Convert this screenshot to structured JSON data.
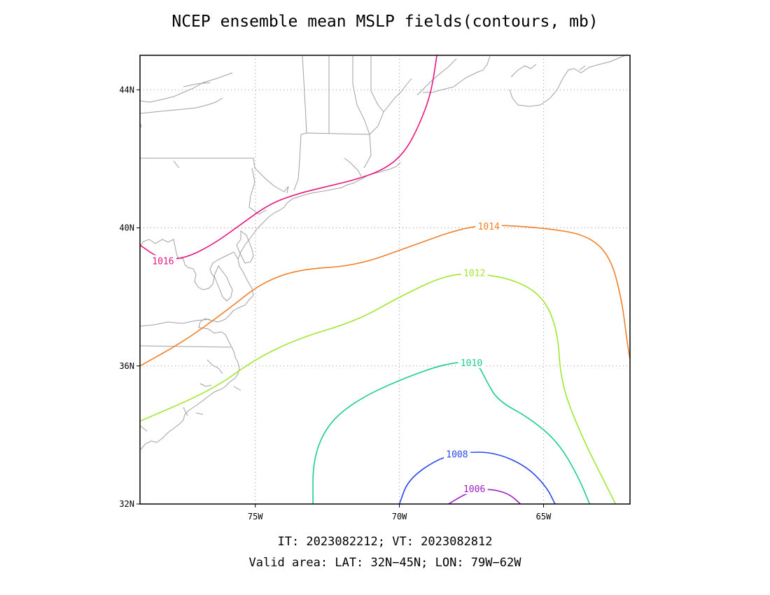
{
  "title": "NCEP ensemble mean MSLP fields(contours, mb)",
  "footer": {
    "line1": "IT: 2023082212; VT: 2023082812",
    "line2": "Valid area: LAT: 32N−45N; LON: 79W−62W"
  },
  "axes": {
    "lat_range": [
      32,
      45
    ],
    "lon_range": [
      -79,
      -62
    ],
    "lat_ticks": [
      {
        "value": 32,
        "label": "32N"
      },
      {
        "value": 36,
        "label": "36N"
      },
      {
        "value": 40,
        "label": "40N"
      },
      {
        "value": 44,
        "label": "44N"
      }
    ],
    "lon_ticks": [
      {
        "value": -75,
        "label": "75W"
      },
      {
        "value": -70,
        "label": "70W"
      },
      {
        "value": -65,
        "label": "65W"
      }
    ],
    "grid": "dotted"
  },
  "contours": [
    {
      "value": 1016,
      "label": "1016",
      "color": "#e8157f",
      "points": [
        [
          -79.0,
          39.5
        ],
        [
          -78.3,
          39.1
        ],
        [
          -77.5,
          39.1
        ],
        [
          -76.5,
          39.5
        ],
        [
          -75.5,
          40.1
        ],
        [
          -74.5,
          40.7
        ],
        [
          -73.5,
          41.0
        ],
        [
          -72.5,
          41.2
        ],
        [
          -71.5,
          41.4
        ],
        [
          -70.5,
          41.7
        ],
        [
          -69.8,
          42.2
        ],
        [
          -69.3,
          43.0
        ],
        [
          -68.9,
          43.9
        ],
        [
          -68.7,
          45.0
        ]
      ],
      "label_at": [
        -78.2,
        39.05
      ]
    },
    {
      "value": 1014,
      "label": "1014",
      "color": "#f08029",
      "points": [
        [
          -79.0,
          36.0
        ],
        [
          -77.5,
          36.7
        ],
        [
          -76.0,
          37.6
        ],
        [
          -74.8,
          38.4
        ],
        [
          -73.5,
          38.8
        ],
        [
          -71.5,
          38.9
        ],
        [
          -69.5,
          39.5
        ],
        [
          -68.0,
          39.95
        ],
        [
          -66.9,
          40.1
        ],
        [
          -65.0,
          40.0
        ],
        [
          -63.5,
          39.8
        ],
        [
          -62.7,
          39.2
        ],
        [
          -62.3,
          38.0
        ],
        [
          -62.1,
          36.7
        ],
        [
          -62.0,
          36.2
        ]
      ],
      "label_at": [
        -66.9,
        40.05
      ]
    },
    {
      "value": 1012,
      "label": "1012",
      "color": "#a0e632",
      "points": [
        [
          -79.0,
          34.4
        ],
        [
          -76.5,
          35.3
        ],
        [
          -75.0,
          36.2
        ],
        [
          -73.5,
          36.8
        ],
        [
          -71.5,
          37.3
        ],
        [
          -70.0,
          38.0
        ],
        [
          -68.5,
          38.6
        ],
        [
          -67.4,
          38.7
        ],
        [
          -66.0,
          38.5
        ],
        [
          -65.0,
          38.0
        ],
        [
          -64.5,
          37.0
        ],
        [
          -64.4,
          35.5
        ],
        [
          -63.7,
          34.0
        ],
        [
          -62.8,
          32.5
        ],
        [
          -62.5,
          32.0
        ]
      ],
      "label_at": [
        -67.4,
        38.7
      ]
    },
    {
      "value": 1010,
      "label": "1010",
      "color": "#1ecc91",
      "points": [
        [
          -73.0,
          32.0
        ],
        [
          -73.0,
          33.3
        ],
        [
          -72.5,
          34.3
        ],
        [
          -71.5,
          35.0
        ],
        [
          -70.0,
          35.6
        ],
        [
          -68.3,
          36.1
        ],
        [
          -67.3,
          36.1
        ],
        [
          -67.0,
          35.6
        ],
        [
          -66.6,
          35.0
        ],
        [
          -65.5,
          34.5
        ],
        [
          -64.5,
          33.8
        ],
        [
          -63.8,
          32.8
        ],
        [
          -63.4,
          32.0
        ]
      ],
      "label_at": [
        -67.5,
        36.1
      ]
    },
    {
      "value": 1008,
      "label": "1008",
      "color": "#2846f0",
      "points": [
        [
          -70.0,
          32.0
        ],
        [
          -69.7,
          32.7
        ],
        [
          -68.7,
          33.3
        ],
        [
          -67.8,
          33.5
        ],
        [
          -66.7,
          33.5
        ],
        [
          -65.6,
          33.1
        ],
        [
          -64.9,
          32.5
        ],
        [
          -64.6,
          32.0
        ]
      ],
      "label_at": [
        -68.0,
        33.45
      ]
    },
    {
      "value": 1006,
      "label": "1006",
      "color": "#a01ec8",
      "points": [
        [
          -68.3,
          32.0
        ],
        [
          -67.6,
          32.35
        ],
        [
          -66.9,
          32.45
        ],
        [
          -66.2,
          32.3
        ],
        [
          -65.8,
          32.0
        ]
      ],
      "label_at": [
        -67.4,
        32.45
      ]
    }
  ],
  "coastline_color": "#a0a0a0"
}
